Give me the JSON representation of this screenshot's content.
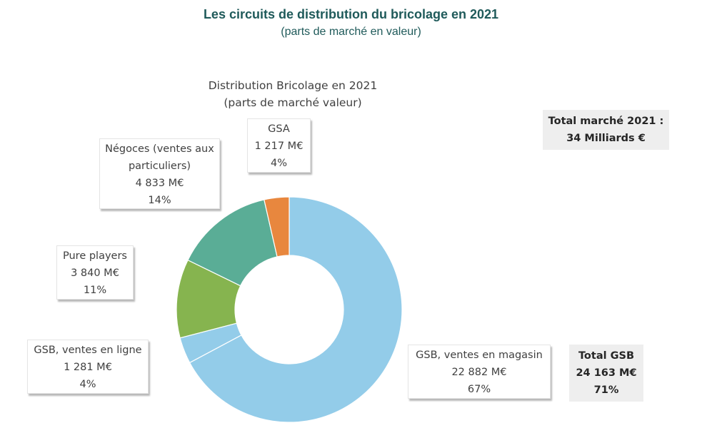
{
  "header": {
    "title": "Les circuits de distribution du bricolage en 2021",
    "subtitle": "(parts de marché en valeur)"
  },
  "chart_data": {
    "type": "pie",
    "style": "donut",
    "title": "Distribution Bricolage en 2021",
    "subtitle": "(parts de marché valeur)",
    "unit": "M€",
    "slices": [
      {
        "name": "GSB, ventes en magasin",
        "value": 22882,
        "value_label": "22 882  M€",
        "percent": 67,
        "percent_label": "67%",
        "color": "#93cce9"
      },
      {
        "name": "GSB, ventes en ligne",
        "value": 1281,
        "value_label": "1 281  M€",
        "percent": 4,
        "percent_label": "4%",
        "color": "#93cce9"
      },
      {
        "name": "Pure players",
        "value": 3840,
        "value_label": "3 840  M€",
        "percent": 11,
        "percent_label": "11%",
        "color": "#86b44f"
      },
      {
        "name": "Négoces (ventes aux particuliers)",
        "name_lines": [
          "Négoces (ventes aux",
          "particuliers)"
        ],
        "value": 4833,
        "value_label": "4 833  M€",
        "percent": 14,
        "percent_label": "14%",
        "color": "#5aad96"
      },
      {
        "name": "GSA",
        "value": 1217,
        "value_label": "1 217  M€",
        "percent": 4,
        "percent_label": "4%",
        "color": "#e8873e"
      }
    ],
    "annotations": {
      "total_market": {
        "line1": "Total marché 2021 :",
        "line2": "34 Milliards €"
      },
      "total_gsb": {
        "line1": "Total GSB",
        "line2": "24 163 M€",
        "line3": "71%"
      }
    }
  }
}
